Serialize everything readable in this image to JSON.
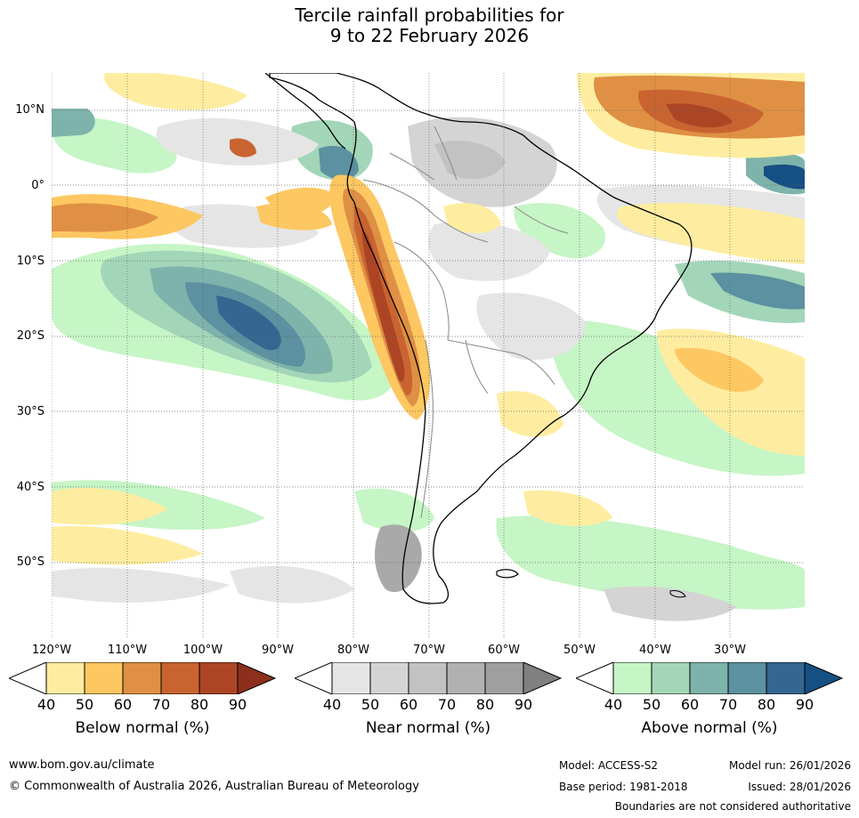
{
  "title": {
    "line1": "Tercile rainfall probabilities for",
    "line2": "9 to 22 February 2026"
  },
  "map": {
    "lat_labels": [
      "10°N",
      "0°",
      "10°S",
      "20°S",
      "30°S",
      "40°S",
      "50°S"
    ],
    "lon_labels": [
      "120°W",
      "110°W",
      "100°W",
      "90°W",
      "80°W",
      "70°W",
      "60°W",
      "50°W",
      "40°W",
      "30°W"
    ]
  },
  "colorbars": [
    {
      "label": "Below normal (%)",
      "ticks": [
        "40",
        "50",
        "60",
        "70",
        "80",
        "90"
      ],
      "colors": [
        "#ffffff",
        "#feeda0",
        "#fdc761",
        "#df9044",
        "#c96431",
        "#ad4525",
        "#8c2f1d"
      ]
    },
    {
      "label": "Near normal (%)",
      "ticks": [
        "40",
        "50",
        "60",
        "70",
        "80",
        "90"
      ],
      "colors": [
        "#ffffff",
        "#e5e5e5",
        "#d4d4d4",
        "#c2c2c2",
        "#b1b1b1",
        "#9f9f9f",
        "#808080"
      ]
    },
    {
      "label": "Above normal (%)",
      "ticks": [
        "40",
        "50",
        "60",
        "70",
        "80",
        "90"
      ],
      "colors": [
        "#ffffff",
        "#c6f5c6",
        "#a3d6b8",
        "#7eb3ab",
        "#5b91a0",
        "#346691",
        "#164f84"
      ]
    }
  ],
  "footer": {
    "website": "www.bom.gov.au/climate",
    "copyright": "© Commonwealth of Australia 2026, Australian Bureau of Meteorology",
    "model": "Model: ACCESS-S2",
    "base_period": "Base period: 1981-2018",
    "model_run": "Model run: 26/01/2026",
    "issued": "Issued: 28/01/2026",
    "disclaimer": "Boundaries are not considered authoritative"
  }
}
